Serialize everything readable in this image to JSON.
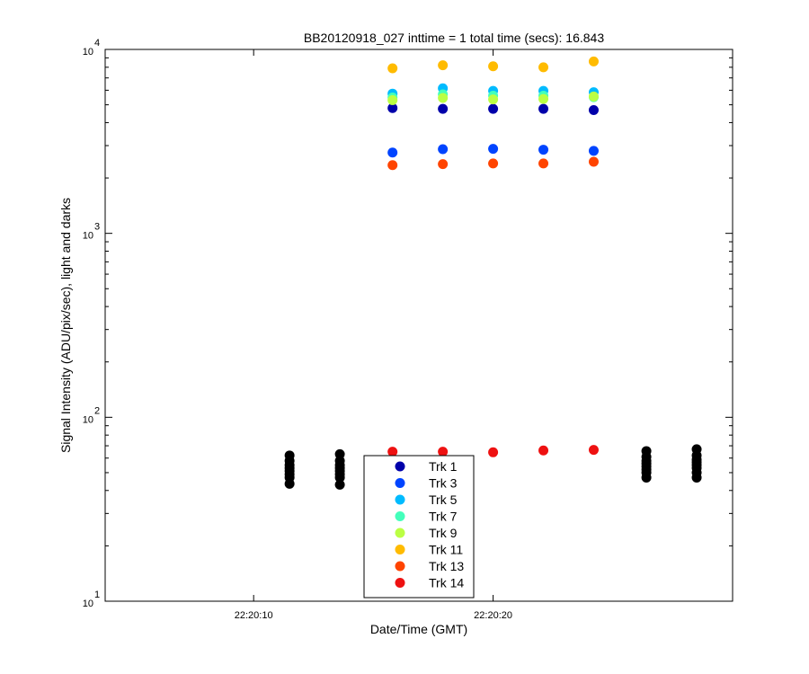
{
  "chart_data": {
    "type": "scatter",
    "title": "BB20120918_027 inttime = 1 total time (secs): 16.843",
    "xlabel": "Date/Time (GMT)",
    "ylabel": "Signal Intensity (ADU/pix/sec), light and darks",
    "x_scale": "time",
    "y_scale": "log",
    "xlim": [
      "22:20:03.8",
      "22:20:30"
    ],
    "ylim": [
      10,
      10000
    ],
    "x_ticks": [
      "22:20:10",
      "22:20:20"
    ],
    "y_ticks": [
      {
        "value": 10,
        "base": "10",
        "exp": "1"
      },
      {
        "value": 100,
        "base": "10",
        "exp": "2"
      },
      {
        "value": 1000,
        "base": "10",
        "exp": "3"
      },
      {
        "value": 10000,
        "base": "10",
        "exp": "4"
      }
    ],
    "grid": false,
    "legend_position": "bottom-center",
    "light_times": [
      "22:20:15.8",
      "22:20:17.9",
      "22:20:20.0",
      "22:20:22.1",
      "22:20:24.2"
    ],
    "series": [
      {
        "name": "Trk 1",
        "color": "#0000aa",
        "x": [
          "22:20:15.8",
          "22:20:17.9",
          "22:20:20.0",
          "22:20:22.1",
          "22:20:24.2"
        ],
        "y": [
          4800,
          4750,
          4750,
          4750,
          4680
        ]
      },
      {
        "name": "Trk 3",
        "color": "#0044ff",
        "x": [
          "22:20:15.8",
          "22:20:17.9",
          "22:20:20.0",
          "22:20:22.1",
          "22:20:24.2"
        ],
        "y": [
          2750,
          2870,
          2880,
          2850,
          2810
        ]
      },
      {
        "name": "Trk 5",
        "color": "#00bbff",
        "x": [
          "22:20:15.8",
          "22:20:17.9",
          "22:20:20.0",
          "22:20:22.1",
          "22:20:24.2"
        ],
        "y": [
          5750,
          6150,
          5950,
          5950,
          5850
        ]
      },
      {
        "name": "Trk 7",
        "color": "#44ffbb",
        "x": [
          "22:20:15.8",
          "22:20:17.9",
          "22:20:20.0",
          "22:20:22.1",
          "22:20:24.2"
        ],
        "y": [
          5480,
          5700,
          5600,
          5600,
          5500
        ]
      },
      {
        "name": "Trk 9",
        "color": "#bbff44",
        "x": [
          "22:20:15.8",
          "22:20:17.9",
          "22:20:20.0",
          "22:20:22.1",
          "22:20:24.2"
        ],
        "y": [
          5300,
          5450,
          5350,
          5380,
          5550
        ]
      },
      {
        "name": "Trk 11",
        "color": "#ffbb00",
        "x": [
          "22:20:15.8",
          "22:20:17.9",
          "22:20:20.0",
          "22:20:22.1",
          "22:20:24.2"
        ],
        "y": [
          7900,
          8200,
          8100,
          8000,
          8600
        ]
      },
      {
        "name": "Trk 13",
        "color": "#ff4400",
        "x": [
          "22:20:15.8",
          "22:20:17.9",
          "22:20:20.0",
          "22:20:22.1",
          "22:20:24.2"
        ],
        "y": [
          2350,
          2380,
          2400,
          2400,
          2450
        ]
      },
      {
        "name": "Trk 14",
        "color": "#ee1111",
        "x": [
          "22:20:15.8",
          "22:20:17.9",
          "22:20:20.0",
          "22:20:22.1",
          "22:20:24.2"
        ],
        "y": [
          65,
          65,
          64.5,
          66,
          66.5
        ]
      }
    ],
    "darks": {
      "color": "#000000",
      "groups": [
        {
          "x": "22:20:11.5",
          "y": [
            62,
            58,
            55,
            53,
            51,
            49,
            47,
            43.5
          ]
        },
        {
          "x": "22:20:13.6",
          "y": [
            63,
            58,
            55,
            53,
            51,
            49,
            47,
            43
          ]
        },
        {
          "x": "22:20:26.4",
          "y": [
            65.5,
            61,
            58,
            56,
            54,
            52,
            50,
            47
          ]
        },
        {
          "x": "22:20:28.5",
          "y": [
            67,
            62,
            59,
            57,
            55,
            53,
            50,
            47
          ]
        }
      ]
    }
  }
}
